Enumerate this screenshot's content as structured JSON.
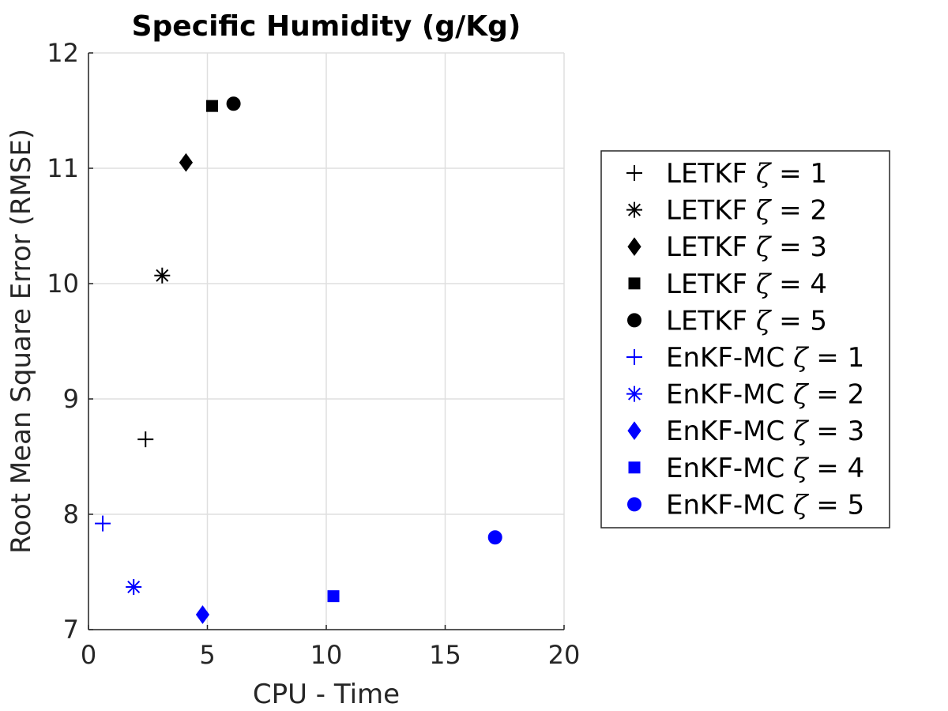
{
  "chart_data": {
    "type": "scatter",
    "title": "Specific Humidity (g/Kg)",
    "xlabel": "CPU - Time",
    "ylabel": "Root Mean Square Error (RMSE)",
    "xlim": [
      0,
      20
    ],
    "ylim": [
      7,
      12
    ],
    "xticks": [
      0,
      5,
      10,
      15,
      20
    ],
    "yticks": [
      7,
      8,
      9,
      10,
      11,
      12
    ],
    "xtick_labels": [
      "0",
      "5",
      "10",
      "15",
      "20"
    ],
    "ytick_labels": [
      "7",
      "8",
      "9",
      "10",
      "11",
      "12"
    ],
    "grid": true,
    "legend_position": "right",
    "series": [
      {
        "name": "LETKF",
        "zeta": "1",
        "x": 2.4,
        "y": 8.65,
        "marker": "plus",
        "color": "#000000"
      },
      {
        "name": "LETKF",
        "zeta": "2",
        "x": 3.1,
        "y": 10.07,
        "marker": "asterisk",
        "color": "#000000"
      },
      {
        "name": "LETKF",
        "zeta": "3",
        "x": 4.1,
        "y": 11.05,
        "marker": "diamond",
        "color": "#000000"
      },
      {
        "name": "LETKF",
        "zeta": "4",
        "x": 5.2,
        "y": 11.54,
        "marker": "square",
        "color": "#000000"
      },
      {
        "name": "LETKF",
        "zeta": "5",
        "x": 6.1,
        "y": 11.56,
        "marker": "circle",
        "color": "#000000"
      },
      {
        "name": "EnKF-MC",
        "zeta": "1",
        "x": 0.6,
        "y": 7.92,
        "marker": "plus",
        "color": "#0000ff"
      },
      {
        "name": "EnKF-MC",
        "zeta": "2",
        "x": 1.9,
        "y": 7.37,
        "marker": "asterisk",
        "color": "#0000ff"
      },
      {
        "name": "EnKF-MC",
        "zeta": "3",
        "x": 4.8,
        "y": 7.13,
        "marker": "diamond",
        "color": "#0000ff"
      },
      {
        "name": "EnKF-MC",
        "zeta": "4",
        "x": 10.3,
        "y": 7.29,
        "marker": "square",
        "color": "#0000ff"
      },
      {
        "name": "EnKF-MC",
        "zeta": "5",
        "x": 17.1,
        "y": 7.8,
        "marker": "circle",
        "color": "#0000ff"
      }
    ],
    "legend": {
      "zeta_symbol": "ζ",
      "equals": "="
    }
  }
}
